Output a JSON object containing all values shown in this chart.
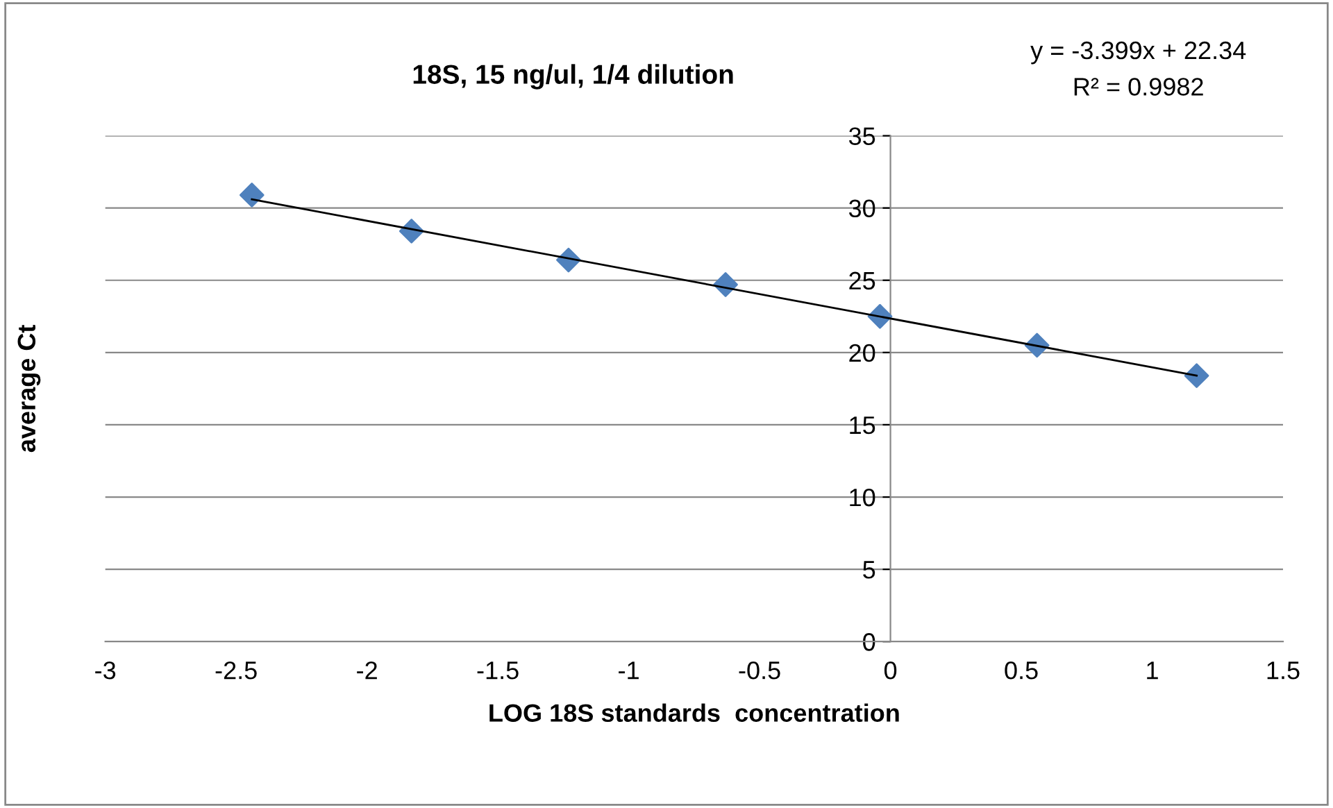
{
  "chart_data": {
    "type": "scatter",
    "title": "18S, 15 ng/ul, 1/4 dilution",
    "xlabel": "LOG 18S standards  concentration",
    "ylabel": "average Ct",
    "annotations": [
      "y = -3.399x + 22.34",
      "R² = 0.9982"
    ],
    "series": [
      {
        "color": "#4f81bd",
        "marker": "diamond",
        "x": [
          -2.44,
          -1.83,
          -1.23,
          -0.63,
          -0.04,
          0.56,
          1.17
        ],
        "values": [
          30.9,
          28.4,
          26.4,
          24.7,
          22.5,
          20.5,
          18.4
        ]
      },
      {
        "type": "line",
        "color": "#000000",
        "marker": "none",
        "line_style": "solid",
        "x": [
          -2.44,
          1.17
        ],
        "values": [
          30.6,
          18.4
        ]
      }
    ],
    "xlim": [
      -3,
      1.5
    ],
    "xticks": [
      -3,
      -2.5,
      -2,
      -1.5,
      -1,
      -0.5,
      0,
      0.5,
      1,
      1.5
    ],
    "ylim": [
      0,
      35
    ],
    "yticks": [
      0,
      5,
      10,
      15,
      20,
      25,
      30,
      35
    ],
    "grid": "y",
    "legend": false
  }
}
